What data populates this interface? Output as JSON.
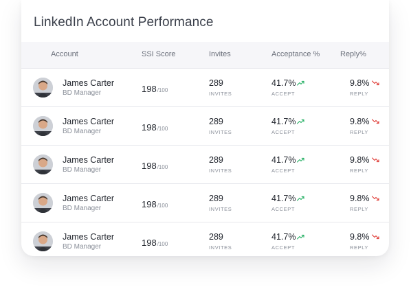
{
  "title": "LinkedIn Account Performance",
  "columns": {
    "account": "Account",
    "ssi": "SSI Score",
    "invites": "Invites",
    "acceptance": "Acceptance %",
    "reply": "Reply%"
  },
  "colors": {
    "trend_up": "#2fb36b",
    "trend_down": "#e0443f"
  },
  "rows": [
    {
      "name": "James Carter",
      "role": "BD Manager",
      "ssi": "198",
      "ssi_max": "/100",
      "invites": "289",
      "invites_label": "INVITES",
      "acceptance": "41.7%",
      "acceptance_label": "ACCEPT",
      "acceptance_trend": "trend-up-icon",
      "reply": "9.8%",
      "reply_label": "REPLY",
      "reply_trend": "trend-down-icon"
    },
    {
      "name": "James Carter",
      "role": "BD Manager",
      "ssi": "198",
      "ssi_max": "/100",
      "invites": "289",
      "invites_label": "INVITES",
      "acceptance": "41.7%",
      "acceptance_label": "ACCEPT",
      "acceptance_trend": "trend-up-icon",
      "reply": "9.8%",
      "reply_label": "REPLY",
      "reply_trend": "trend-down-icon"
    },
    {
      "name": "James Carter",
      "role": "BD Manager",
      "ssi": "198",
      "ssi_max": "/100",
      "invites": "289",
      "invites_label": "INVITES",
      "acceptance": "41.7%",
      "acceptance_label": "ACCEPT",
      "acceptance_trend": "trend-up-icon",
      "reply": "9.8%",
      "reply_label": "REPLY",
      "reply_trend": "trend-down-icon"
    },
    {
      "name": "James Carter",
      "role": "BD Manager",
      "ssi": "198",
      "ssi_max": "/100",
      "invites": "289",
      "invites_label": "INVITES",
      "acceptance": "41.7%",
      "acceptance_label": "ACCEPT",
      "acceptance_trend": "trend-up-icon",
      "reply": "9.8%",
      "reply_label": "REPLY",
      "reply_trend": "trend-down-icon"
    },
    {
      "name": "James Carter",
      "role": "BD Manager",
      "ssi": "198",
      "ssi_max": "/100",
      "invites": "289",
      "invites_label": "INVITES",
      "acceptance": "41.7%",
      "acceptance_label": "ACCEPT",
      "acceptance_trend": "trend-up-icon",
      "reply": "9.8%",
      "reply_label": "REPLY",
      "reply_trend": "trend-down-icon"
    }
  ]
}
